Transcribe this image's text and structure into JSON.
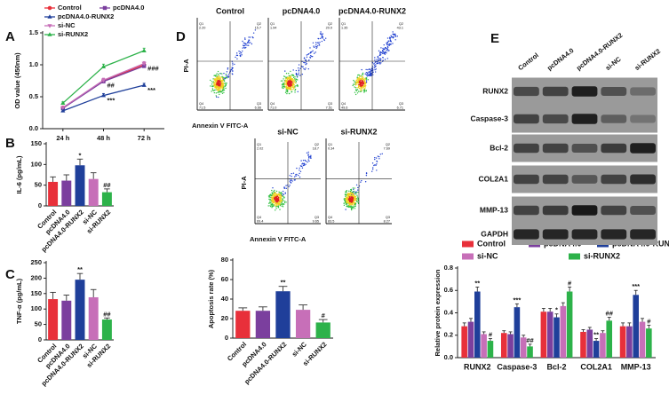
{
  "chart_data": [
    {
      "type": "line",
      "panel": "A",
      "y_label": "OD value (450nm)",
      "categories": [
        "24 h",
        "48 h",
        "72 h"
      ],
      "ylim": [
        0,
        1.5
      ],
      "yticks": [
        {
          "value": 0,
          "label": "0.0"
        },
        0.5,
        {
          "value": 1,
          "label": "1.0"
        },
        1.5
      ],
      "series": [
        {
          "name": "Control",
          "color": "#e8303a",
          "marker": "circle",
          "values": [
            0.33,
            0.75,
            1.0
          ],
          "errors": [
            0.02,
            0.03,
            0.03
          ]
        },
        {
          "name": "pcDNA4.0",
          "color": "#7b3f9e",
          "marker": "square",
          "values": [
            0.32,
            0.74,
            0.98
          ],
          "errors": [
            0.02,
            0.03,
            0.03
          ]
        },
        {
          "name": "pcDNA4.0-RUNX2",
          "color": "#1f3f9a",
          "marker": "triangle",
          "values": [
            0.28,
            0.52,
            0.68
          ],
          "errors": [
            0.02,
            0.03,
            0.03
          ]
        },
        {
          "name": "si-NC",
          "color": "#c76fb8",
          "marker": "triangle-down",
          "values": [
            0.33,
            0.76,
            1.02
          ],
          "errors": [
            0.02,
            0.03,
            0.03
          ]
        },
        {
          "name": "si-RUNX2",
          "color": "#2db24a",
          "marker": "triangle",
          "values": [
            0.4,
            0.97,
            1.22
          ],
          "errors": [
            0.02,
            0.04,
            0.04
          ]
        }
      ],
      "annotations": [
        {
          "text": "##",
          "series": "si-NC",
          "category": "48 h"
        },
        {
          "text": "###",
          "series": "si-NC",
          "category": "72 h"
        },
        {
          "text": "***",
          "series": "pcDNA4.0-RUNX2",
          "category": "48 h"
        },
        {
          "text": "***",
          "series": "pcDNA4.0-RUNX2",
          "category": "72 h"
        }
      ]
    },
    {
      "type": "bar",
      "panel": "B",
      "y_label": "IL-6 (pg/mL)",
      "categories": [
        "Control",
        "pcDNA4.0",
        "pcDNA4.0-RUNX2",
        "si-NC",
        "si-RUNX2"
      ],
      "values": [
        58,
        61,
        98,
        65,
        33
      ],
      "errors": [
        12,
        14,
        15,
        15,
        8
      ],
      "colors": [
        "#e8303a",
        "#7b3f9e",
        "#1f3f9a",
        "#c76fb8",
        "#2db24a"
      ],
      "ylim": [
        0,
        150
      ],
      "yticks": [
        0,
        50,
        100,
        150
      ],
      "annotations": [
        {
          "text": "*",
          "category": "pcDNA4.0-RUNX2"
        },
        {
          "text": "##",
          "category": "si-RUNX2"
        }
      ]
    },
    {
      "type": "bar",
      "panel": "C",
      "y_label": "TNF-α (pg/mL)",
      "categories": [
        "Control",
        "pcDNA4.0",
        "pcDNA4.0-RUNX2",
        "si-NC",
        "si-RUNX2"
      ],
      "values": [
        132,
        127,
        195,
        138,
        66
      ],
      "errors": [
        22,
        18,
        20,
        25,
        5
      ],
      "colors": [
        "#e8303a",
        "#7b3f9e",
        "#1f3f9a",
        "#c76fb8",
        "#2db24a"
      ],
      "ylim": [
        0,
        250
      ],
      "yticks": [
        0,
        50,
        100,
        150,
        200,
        250
      ],
      "annotations": [
        {
          "text": "**",
          "category": "pcDNA4.0-RUNX2"
        },
        {
          "text": "##",
          "category": "si-RUNX2"
        }
      ]
    },
    {
      "type": "bar",
      "y_label": "Apoptosis rate (%)",
      "categories": [
        "Control",
        "pcDNA4.0",
        "pcDNA4.0-RUNX2",
        "si-NC",
        "si-RUNX2"
      ],
      "values": [
        28,
        28,
        48,
        29,
        16
      ],
      "errors": [
        3,
        4,
        5,
        5,
        3
      ],
      "colors": [
        "#e8303a",
        "#7b3f9e",
        "#1f3f9a",
        "#c76fb8",
        "#2db24a"
      ],
      "ylim": [
        0,
        80
      ],
      "yticks": [
        0,
        20,
        40,
        60,
        80
      ],
      "annotations": [
        {
          "text": "**",
          "category": "pcDNA4.0-RUNX2"
        },
        {
          "text": "#",
          "category": "si-RUNX2"
        }
      ]
    },
    {
      "type": "bar",
      "y_label": "Relative protein expression",
      "categories": [
        "RUNX2",
        "Caspase-3",
        "Bcl-2",
        "COL2A1",
        "MMP-13"
      ],
      "ylim": [
        0,
        0.8
      ],
      "yticks": [
        {
          "value": 0,
          "label": "0.0"
        },
        0.2,
        0.4,
        0.6,
        0.8
      ],
      "series": [
        {
          "name": "Control",
          "color": "#e8303a",
          "values": [
            0.28,
            0.22,
            0.41,
            0.23,
            0.28
          ],
          "errors": [
            0.03,
            0.02,
            0.03,
            0.02,
            0.03
          ]
        },
        {
          "name": "pcDNA4.0",
          "color": "#7b3f9e",
          "values": [
            0.32,
            0.21,
            0.41,
            0.25,
            0.28
          ],
          "errors": [
            0.03,
            0.02,
            0.03,
            0.02,
            0.03
          ]
        },
        {
          "name": "pcDNA4.0-RUNX2",
          "color": "#1f3f9a",
          "values": [
            0.59,
            0.45,
            0.36,
            0.15,
            0.56
          ],
          "errors": [
            0.04,
            0.03,
            0.03,
            0.02,
            0.04
          ]
        },
        {
          "name": "si-NC",
          "color": "#c76fb8",
          "values": [
            0.21,
            0.18,
            0.46,
            0.22,
            0.32
          ],
          "errors": [
            0.02,
            0.02,
            0.03,
            0.02,
            0.03
          ]
        },
        {
          "name": "si-RUNX2",
          "color": "#2db24a",
          "values": [
            0.15,
            0.1,
            0.59,
            0.33,
            0.26
          ],
          "errors": [
            0.02,
            0.02,
            0.04,
            0.03,
            0.03
          ]
        }
      ],
      "annotations": [
        {
          "text": "**",
          "series": "pcDNA4.0-RUNX2",
          "category": "RUNX2"
        },
        {
          "text": "#",
          "series": "si-RUNX2",
          "category": "RUNX2"
        },
        {
          "text": "***",
          "series": "pcDNA4.0-RUNX2",
          "category": "Caspase-3"
        },
        {
          "text": "##",
          "series": "si-RUNX2",
          "category": "Caspase-3"
        },
        {
          "text": "*",
          "series": "pcDNA4.0-RUNX2",
          "category": "Bcl-2"
        },
        {
          "text": "#",
          "series": "si-RUNX2",
          "category": "Bcl-2"
        },
        {
          "text": "**",
          "series": "pcDNA4.0-RUNX2",
          "category": "COL2A1"
        },
        {
          "text": "##",
          "series": "si-RUNX2",
          "category": "COL2A1"
        },
        {
          "text": "***",
          "series": "pcDNA4.0-RUNX2",
          "category": "MMP-13"
        },
        {
          "text": "#",
          "series": "si-RUNX2",
          "category": "MMP-13"
        }
      ]
    }
  ],
  "flow": {
    "panel": "D",
    "x_label": "Annexin V FITC-A",
    "y_label": "PI-A",
    "plots": [
      {
        "title": "Control",
        "quadrants": [
          {
            "label": "Q1",
            "value": "2.20"
          },
          {
            "label": "Q2",
            "value": "15.7"
          },
          {
            "label": "Q3",
            "value": "6.66"
          },
          {
            "label": "Q4",
            "value": "71.5"
          }
        ]
      },
      {
        "title": "pcDNA4.0",
        "quadrants": [
          {
            "label": "Q1",
            "value": "1.94"
          },
          {
            "label": "Q2",
            "value": "20.0"
          },
          {
            "label": "Q3",
            "value": "7.51"
          },
          {
            "label": "Q4",
            "value": "71.0"
          }
        ]
      },
      {
        "title": "pcDNA4.0-RUNX2",
        "quadrants": [
          {
            "label": "Q1",
            "value": "1.35"
          },
          {
            "label": "Q2",
            "value": "43.1"
          },
          {
            "label": "Q3",
            "value": "6.71"
          },
          {
            "label": "Q4",
            "value": "49.6"
          }
        ]
      },
      {
        "title": "si-NC",
        "quadrants": [
          {
            "label": "Q1",
            "value": "2.02"
          },
          {
            "label": "Q2",
            "value": "18.7"
          },
          {
            "label": "Q3",
            "value": "9.65"
          },
          {
            "label": "Q4",
            "value": "69.4"
          }
        ]
      },
      {
        "title": "si-RUNX2",
        "quadrants": [
          {
            "label": "Q1",
            "value": "0.34"
          },
          {
            "label": "Q2",
            "value": "7.69"
          },
          {
            "label": "Q3",
            "value": "8.27"
          },
          {
            "label": "Q4",
            "value": "83.5"
          }
        ]
      }
    ]
  },
  "blot": {
    "panel": "E",
    "columns": [
      "Control",
      "pcDNA4.0",
      "pcDNA4.0-RUNX2",
      "si-NC",
      "si-RUNX2"
    ],
    "rows": [
      "RUNX2",
      "Caspase-3",
      "Bcl-2",
      "COL2A1",
      "MMP-13",
      "GAPDH"
    ]
  }
}
